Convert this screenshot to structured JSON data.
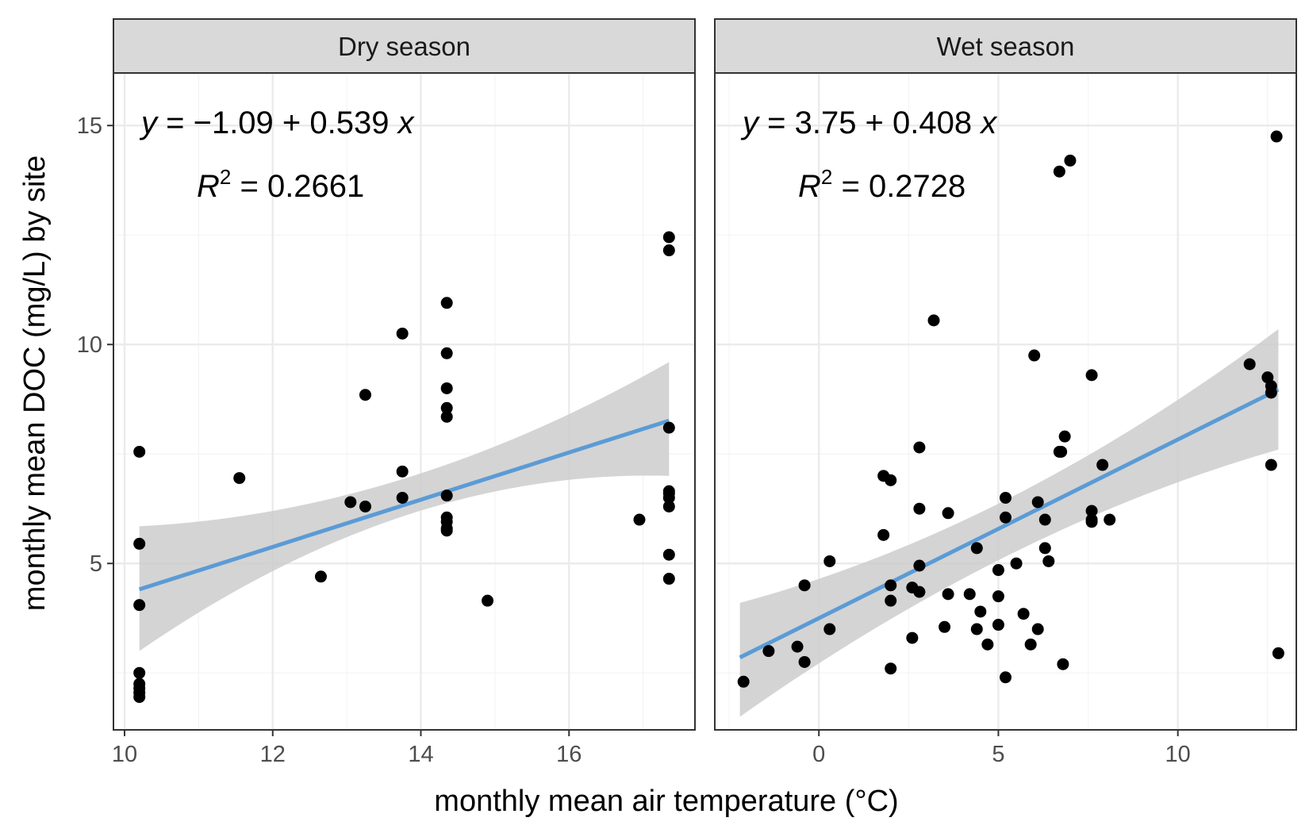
{
  "chart_data": {
    "type": "scatter",
    "xlabel": "monthly mean air temperature (°C)",
    "ylabel": "monthly mean DOC (mg/L) by site",
    "facets": [
      {
        "strip": "Dry season",
        "xlim": [
          9.85,
          17.7
        ],
        "ylim": [
          1.2,
          16.2
        ],
        "x_ticks": [
          10,
          12,
          14,
          16
        ],
        "y_ticks": [
          5,
          10,
          15
        ],
        "equation": {
          "y": "y",
          "eq": " = −1.09 + 0.539 ",
          "x": "x"
        },
        "r2": {
          "R": "R",
          "sup": "2",
          "value": " = 0.2661"
        },
        "fit": {
          "intercept": -1.09,
          "slope": 0.539,
          "x_range": [
            10.2,
            17.35
          ]
        },
        "band": {
          "x": [
            10.2,
            13.8,
            17.35
          ],
          "upper": [
            5.85,
            6.95,
            9.6
          ],
          "lower": [
            3.0,
            6.1,
            7.0
          ]
        },
        "points": [
          [
            10.2,
            7.55
          ],
          [
            10.2,
            5.45
          ],
          [
            10.2,
            4.05
          ],
          [
            10.2,
            2.5
          ],
          [
            10.2,
            2.25
          ],
          [
            10.2,
            2.15
          ],
          [
            10.2,
            2.05
          ],
          [
            10.2,
            1.95
          ],
          [
            11.55,
            6.95
          ],
          [
            12.65,
            4.7
          ],
          [
            13.05,
            6.4
          ],
          [
            13.25,
            6.3
          ],
          [
            13.25,
            8.85
          ],
          [
            13.75,
            10.25
          ],
          [
            13.75,
            7.1
          ],
          [
            13.75,
            6.5
          ],
          [
            14.35,
            10.95
          ],
          [
            14.35,
            9.8
          ],
          [
            14.35,
            9.0
          ],
          [
            14.35,
            8.55
          ],
          [
            14.35,
            8.35
          ],
          [
            14.35,
            6.55
          ],
          [
            14.35,
            6.05
          ],
          [
            14.35,
            5.95
          ],
          [
            14.35,
            5.8
          ],
          [
            14.35,
            5.75
          ],
          [
            14.9,
            4.15
          ],
          [
            16.95,
            6.0
          ],
          [
            17.35,
            12.45
          ],
          [
            17.35,
            12.15
          ],
          [
            17.35,
            8.1
          ],
          [
            17.35,
            6.65
          ],
          [
            17.35,
            6.6
          ],
          [
            17.35,
            6.5
          ],
          [
            17.35,
            6.3
          ],
          [
            17.35,
            5.2
          ],
          [
            17.35,
            4.65
          ]
        ]
      },
      {
        "strip": "Wet season",
        "xlim": [
          -2.9,
          13.3
        ],
        "ylim": [
          1.2,
          16.2
        ],
        "x_ticks": [
          0,
          5,
          10
        ],
        "y_ticks": [
          5,
          10,
          15
        ],
        "equation": {
          "y": "y",
          "eq": " = 3.75 + 0.408 ",
          "x": "x"
        },
        "r2": {
          "R": "R",
          "sup": "2",
          "value": " = 0.2728"
        },
        "fit": {
          "intercept": 3.75,
          "slope": 0.408,
          "x_range": [
            -2.2,
            12.8
          ]
        },
        "band": {
          "x": [
            -2.2,
            3.0,
            12.8
          ],
          "upper": [
            4.1,
            5.6,
            10.35
          ],
          "lower": [
            1.5,
            4.2,
            7.6
          ]
        },
        "points": [
          [
            -2.1,
            2.3
          ],
          [
            -1.4,
            3.0
          ],
          [
            -0.6,
            3.1
          ],
          [
            -0.4,
            2.75
          ],
          [
            -0.4,
            4.5
          ],
          [
            0.3,
            3.5
          ],
          [
            0.3,
            5.05
          ],
          [
            1.8,
            7.0
          ],
          [
            1.8,
            5.65
          ],
          [
            2.0,
            6.9
          ],
          [
            2.0,
            4.5
          ],
          [
            2.0,
            4.15
          ],
          [
            2.0,
            2.6
          ],
          [
            2.6,
            4.45
          ],
          [
            2.6,
            3.3
          ],
          [
            2.8,
            7.65
          ],
          [
            2.8,
            6.25
          ],
          [
            2.8,
            4.95
          ],
          [
            2.8,
            4.35
          ],
          [
            3.2,
            10.55
          ],
          [
            3.5,
            3.55
          ],
          [
            3.6,
            6.15
          ],
          [
            3.6,
            4.3
          ],
          [
            4.2,
            4.3
          ],
          [
            4.4,
            5.35
          ],
          [
            4.4,
            3.5
          ],
          [
            4.5,
            3.9
          ],
          [
            4.7,
            3.15
          ],
          [
            5.0,
            4.85
          ],
          [
            5.0,
            4.25
          ],
          [
            5.0,
            3.6
          ],
          [
            5.2,
            6.5
          ],
          [
            5.2,
            6.05
          ],
          [
            5.2,
            2.4
          ],
          [
            5.5,
            5.0
          ],
          [
            5.7,
            3.85
          ],
          [
            5.9,
            3.15
          ],
          [
            6.0,
            9.75
          ],
          [
            6.1,
            6.4
          ],
          [
            6.1,
            3.5
          ],
          [
            6.3,
            6.0
          ],
          [
            6.3,
            5.35
          ],
          [
            6.4,
            5.05
          ],
          [
            6.7,
            13.95
          ],
          [
            6.7,
            7.55
          ],
          [
            6.75,
            7.55
          ],
          [
            6.8,
            2.7
          ],
          [
            6.85,
            7.9
          ],
          [
            7.0,
            14.2
          ],
          [
            7.6,
            9.3
          ],
          [
            7.6,
            6.2
          ],
          [
            7.6,
            6.0
          ],
          [
            7.6,
            5.95
          ],
          [
            7.9,
            7.25
          ],
          [
            8.1,
            6.0
          ],
          [
            12.0,
            9.55
          ],
          [
            12.5,
            9.25
          ],
          [
            12.6,
            9.05
          ],
          [
            12.6,
            7.25
          ],
          [
            12.6,
            8.9
          ],
          [
            12.75,
            14.75
          ],
          [
            12.8,
            2.95
          ]
        ]
      }
    ],
    "colors": {
      "point": "#000000",
      "fit_line": "#5b9bd5",
      "band": "#cccccc",
      "strip_fill": "#d9d9d9",
      "grid_major": "#ebebeb",
      "grid_minor": "#f4f4f4",
      "panel_border": "#333333"
    }
  }
}
